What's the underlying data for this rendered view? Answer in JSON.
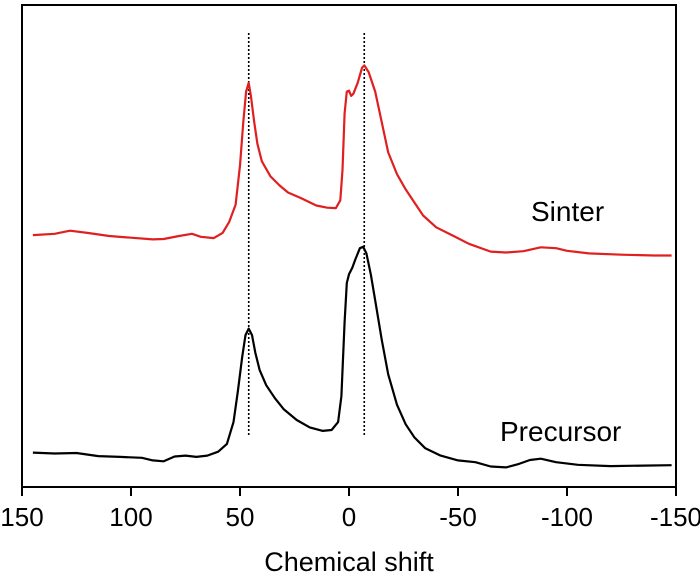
{
  "chart_data": {
    "type": "line",
    "title": "",
    "xlabel": "Chemical shift",
    "ylabel": "",
    "xlim": [
      150,
      -150
    ],
    "ylim": [
      0,
      100
    ],
    "x_ticks": [
      150,
      100,
      50,
      0,
      -50,
      -100,
      -150
    ],
    "x_tick_labels": [
      "150",
      "100",
      "50",
      "0",
      "-50",
      "-100",
      "-150"
    ],
    "reference_lines": [
      46,
      -7
    ],
    "series": [
      {
        "name": "Sinter",
        "color": "#e02020",
        "points": [
          [
            145,
            54
          ],
          [
            135,
            54.3
          ],
          [
            128,
            55
          ],
          [
            120,
            54.5
          ],
          [
            110,
            53.8
          ],
          [
            100,
            53.4
          ],
          [
            90,
            53
          ],
          [
            85,
            53.1
          ],
          [
            78,
            53.8
          ],
          [
            72,
            54.3
          ],
          [
            68,
            53.6
          ],
          [
            62,
            53.3
          ],
          [
            58,
            54.5
          ],
          [
            55,
            57
          ],
          [
            52,
            61
          ],
          [
            50,
            70
          ],
          [
            48.5,
            80
          ],
          [
            47.2,
            87
          ],
          [
            46,
            89
          ],
          [
            45,
            86
          ],
          [
            43.5,
            80
          ],
          [
            42,
            75
          ],
          [
            40,
            71
          ],
          [
            36,
            67.5
          ],
          [
            32,
            65.5
          ],
          [
            28,
            63.8
          ],
          [
            22,
            62.5
          ],
          [
            15,
            60.8
          ],
          [
            10,
            60.3
          ],
          [
            6,
            60.2
          ],
          [
            4,
            62
          ],
          [
            3,
            69
          ],
          [
            2,
            82
          ],
          [
            1,
            87
          ],
          [
            0,
            87.2
          ],
          [
            -1,
            86
          ],
          [
            -2,
            86.5
          ],
          [
            -4,
            89
          ],
          [
            -6,
            92.5
          ],
          [
            -7,
            93
          ],
          [
            -9,
            91.5
          ],
          [
            -12,
            87
          ],
          [
            -15,
            80
          ],
          [
            -18,
            73
          ],
          [
            -22,
            68
          ],
          [
            -26,
            64.5
          ],
          [
            -30,
            61.5
          ],
          [
            -34,
            58.5
          ],
          [
            -40,
            55.8
          ],
          [
            -48,
            53.8
          ],
          [
            -55,
            52
          ],
          [
            -65,
            50.2
          ],
          [
            -72,
            50
          ],
          [
            -80,
            50.3
          ],
          [
            -88,
            51.2
          ],
          [
            -95,
            51
          ],
          [
            -100,
            50.4
          ],
          [
            -110,
            49.8
          ],
          [
            -125,
            49.5
          ],
          [
            -140,
            49.3
          ],
          [
            -148,
            49.3
          ]
        ]
      },
      {
        "name": "Precursor",
        "color": "#000000",
        "points": [
          [
            145,
            4
          ],
          [
            135,
            3.8
          ],
          [
            125,
            3.9
          ],
          [
            115,
            3.2
          ],
          [
            105,
            3
          ],
          [
            95,
            2.8
          ],
          [
            90,
            2.2
          ],
          [
            85,
            2
          ],
          [
            80,
            3.1
          ],
          [
            75,
            3.3
          ],
          [
            70,
            3
          ],
          [
            65,
            3.3
          ],
          [
            60,
            4.2
          ],
          [
            56,
            6
          ],
          [
            53,
            11
          ],
          [
            51,
            18
          ],
          [
            49,
            26
          ],
          [
            47.5,
            31
          ],
          [
            46,
            32.5
          ],
          [
            44.5,
            31
          ],
          [
            43,
            27
          ],
          [
            41,
            23
          ],
          [
            38,
            19.5
          ],
          [
            34,
            16.5
          ],
          [
            30,
            14
          ],
          [
            24,
            11.5
          ],
          [
            18,
            9.8
          ],
          [
            12,
            9
          ],
          [
            8,
            9.2
          ],
          [
            5,
            11
          ],
          [
            3.5,
            17
          ],
          [
            2,
            34
          ],
          [
            1,
            43
          ],
          [
            0,
            45
          ],
          [
            -1.5,
            46.5
          ],
          [
            -3,
            48.5
          ],
          [
            -5,
            51
          ],
          [
            -6.5,
            51.3
          ],
          [
            -8,
            49.8
          ],
          [
            -10,
            45
          ],
          [
            -12,
            39
          ],
          [
            -15,
            30
          ],
          [
            -18,
            22
          ],
          [
            -22,
            15
          ],
          [
            -26,
            10.5
          ],
          [
            -30,
            7.5
          ],
          [
            -35,
            5
          ],
          [
            -42,
            3.3
          ],
          [
            -50,
            2.2
          ],
          [
            -58,
            1.8
          ],
          [
            -65,
            0.8
          ],
          [
            -72,
            0.6
          ],
          [
            -78,
            1.4
          ],
          [
            -83,
            2.3
          ],
          [
            -88,
            2.6
          ],
          [
            -95,
            1.8
          ],
          [
            -105,
            1.2
          ],
          [
            -120,
            0.9
          ],
          [
            -135,
            1
          ],
          [
            -148,
            1.1
          ]
        ]
      }
    ]
  }
}
